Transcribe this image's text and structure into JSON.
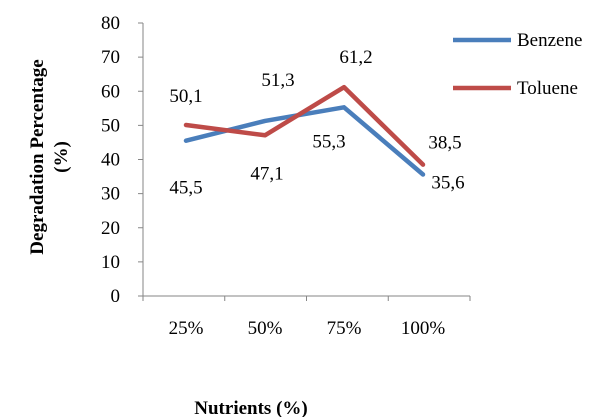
{
  "chart_data": {
    "type": "line",
    "categories": [
      "25%",
      "50%",
      "75%",
      "100%"
    ],
    "series": [
      {
        "name": "Benzene",
        "values": [
          45.5,
          51.3,
          55.3,
          35.6
        ],
        "labels": [
          "45,5",
          "51,3",
          "55,3",
          "35,6"
        ],
        "color": "#4a7ebb"
      },
      {
        "name": "Toluene",
        "values": [
          50.1,
          47.1,
          61.2,
          38.5
        ],
        "labels": [
          "50,1",
          "47,1",
          "61,2",
          "38,5"
        ],
        "color": "#be4b48"
      }
    ],
    "xlabel": "Nutrients (%)",
    "ylabel": [
      "Degradation Percentage",
      "(%)"
    ],
    "ylim": [
      0,
      80
    ],
    "yticks": [
      "0",
      "10",
      "20",
      "30",
      "40",
      "50",
      "60",
      "70",
      "80"
    ],
    "grid": false,
    "legend": "right"
  }
}
